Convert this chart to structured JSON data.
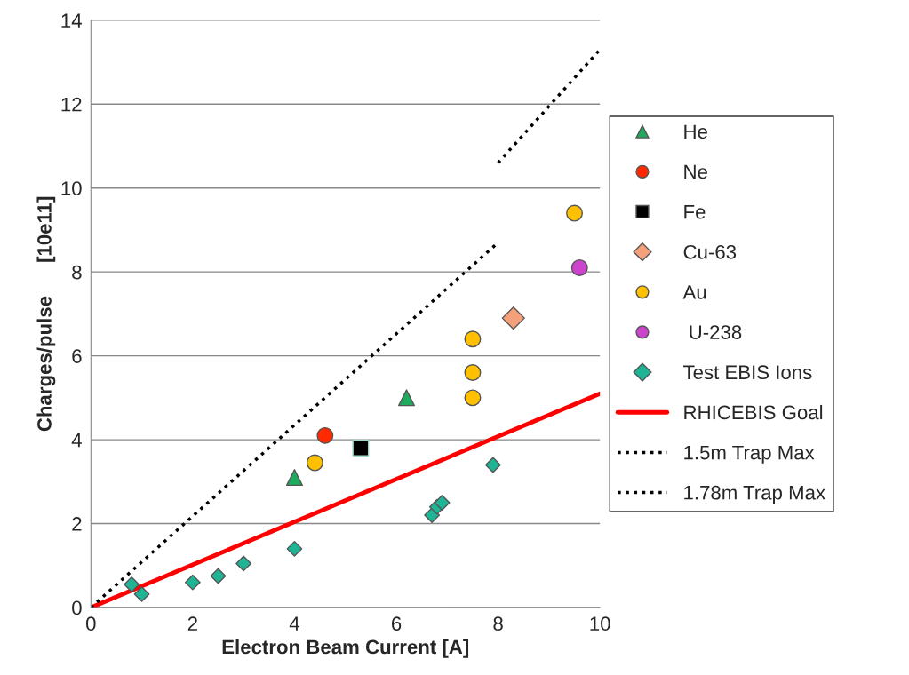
{
  "chart_data": {
    "type": "scatter",
    "xlabel": "Electron Beam Current [A]",
    "ylabel": "Charges/pulse      [10e11]",
    "xlim": [
      0,
      10
    ],
    "xticks": [
      0,
      2,
      4,
      6,
      8,
      10
    ],
    "ylim": [
      0,
      14
    ],
    "yticks": [
      0,
      2,
      4,
      6,
      8,
      10,
      12,
      14
    ],
    "grid": "y",
    "legend": "right",
    "series": [
      {
        "name": "He",
        "marker": "triangle",
        "color": "#1faa5e",
        "x": [
          4,
          6.2
        ],
        "values": [
          3.1,
          5.0
        ]
      },
      {
        "name": "Ne",
        "marker": "circle",
        "color": "#ff2a00",
        "x": [
          4.6
        ],
        "values": [
          4.1
        ]
      },
      {
        "name": "Fe",
        "marker": "square",
        "color": "#000000",
        "x": [
          5.3
        ],
        "values": [
          3.8
        ]
      },
      {
        "name": "Cu-63",
        "marker": "diamond",
        "color": "#f4a07a",
        "x": [
          8.3
        ],
        "values": [
          6.9
        ]
      },
      {
        "name": "Au",
        "marker": "circle",
        "color": "#ffc000",
        "x": [
          4.4,
          7.5,
          7.5,
          7.5,
          9.5
        ],
        "values": [
          3.45,
          6.4,
          5.6,
          5.0,
          9.4
        ]
      },
      {
        "name": " U-238",
        "marker": "circle",
        "color": "#cc44cc",
        "x": [
          9.6
        ],
        "values": [
          8.1
        ]
      },
      {
        "name": "Test EBIS Ions",
        "marker": "diamond",
        "color": "#20b496",
        "x": [
          0.8,
          1,
          2,
          2.5,
          3,
          4,
          6.7,
          6.8,
          6.9,
          7.9
        ],
        "values": [
          0.55,
          0.32,
          0.6,
          0.75,
          1.05,
          1.4,
          2.2,
          2.4,
          2.5,
          3.4
        ]
      },
      {
        "name": "RHICEBIS Goal",
        "type": "line",
        "marker": "none",
        "line_style": "solid",
        "color": "#ff0000",
        "x": [
          0,
          10
        ],
        "values": [
          0,
          5.1
        ]
      },
      {
        "name": "1.5m Trap Max",
        "type": "line",
        "marker": "none",
        "line_style": "dotted",
        "color": "#000000",
        "x": [
          0,
          8
        ],
        "values": [
          0,
          8.7
        ]
      },
      {
        "name": "1.78m Trap Max",
        "type": "line",
        "marker": "none",
        "line_style": "dotted",
        "color": "#000000",
        "x": [
          8,
          10
        ],
        "values": [
          10.6,
          13.3
        ]
      }
    ]
  }
}
